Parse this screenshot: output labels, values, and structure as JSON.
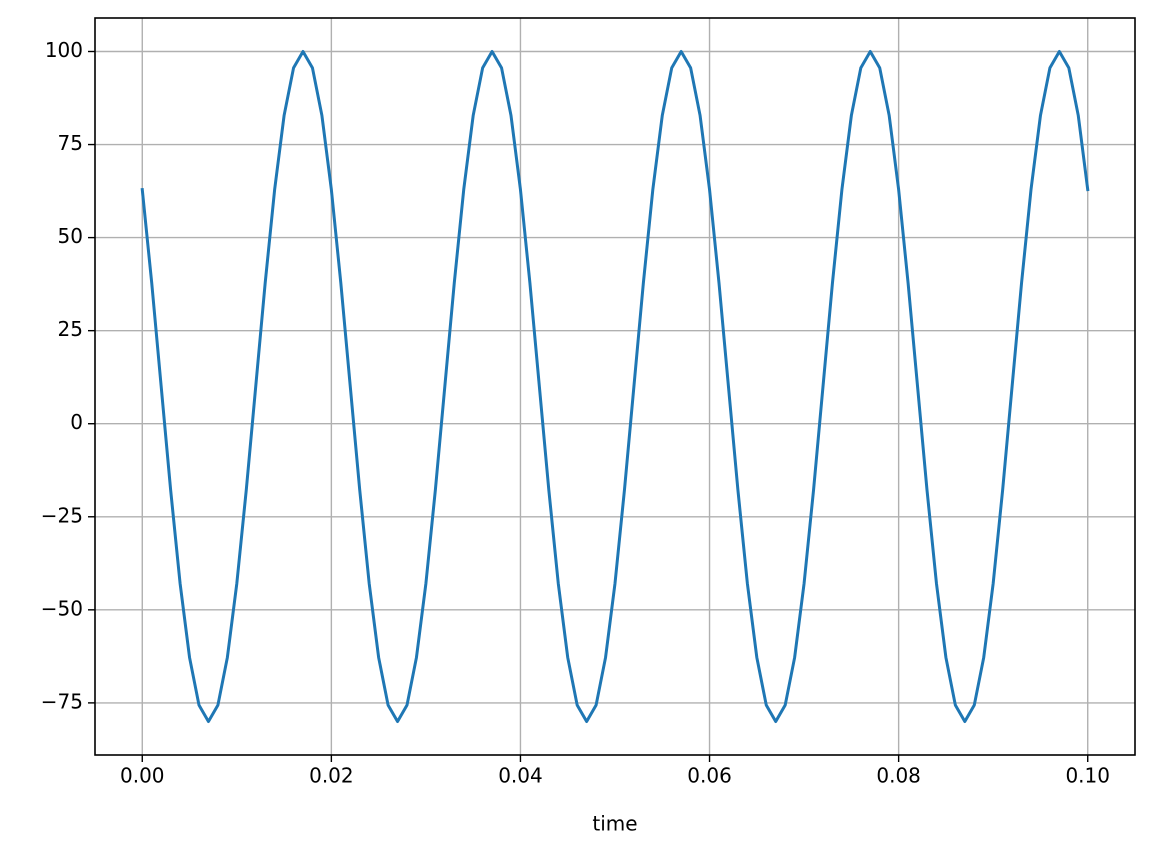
{
  "chart_data": {
    "type": "line",
    "xlabel": "time",
    "color": "#1f77b4",
    "grid": true,
    "xlim": [
      -0.005,
      0.105
    ],
    "ylim": [
      -89,
      109
    ],
    "xticks": [
      {
        "value": 0,
        "label": "0.00"
      },
      {
        "value": 0.02,
        "label": "0.02"
      },
      {
        "value": 0.04,
        "label": "0.04"
      },
      {
        "value": 0.06,
        "label": "0.06"
      },
      {
        "value": 0.08,
        "label": "0.08"
      },
      {
        "value": 0.1,
        "label": "0.10"
      }
    ],
    "yticks": [
      {
        "value": -75,
        "label": "−75"
      },
      {
        "value": -50,
        "label": "−50"
      },
      {
        "value": -25,
        "label": "−25"
      },
      0,
      25,
      50,
      75,
      100
    ],
    "x": [
      0,
      0.001,
      0.002,
      0.003,
      0.004,
      0.005,
      0.006,
      0.007,
      0.008,
      0.009,
      0.01,
      0.011,
      0.012,
      0.013,
      0.014,
      0.015,
      0.016,
      0.017,
      0.018,
      0.019,
      0.02,
      0.021,
      0.022,
      0.023,
      0.024,
      0.025,
      0.026,
      0.027,
      0.028,
      0.029,
      0.03,
      0.031,
      0.032,
      0.033,
      0.034,
      0.035,
      0.036,
      0.037,
      0.038,
      0.039,
      0.04,
      0.041,
      0.042,
      0.043,
      0.044,
      0.045,
      0.046,
      0.047,
      0.048,
      0.049,
      0.05,
      0.051,
      0.052,
      0.053,
      0.054,
      0.055,
      0.056,
      0.057,
      0.058,
      0.059,
      0.06,
      0.061,
      0.062,
      0.063,
      0.064,
      0.065,
      0.066,
      0.067,
      0.068,
      0.069,
      0.07,
      0.071,
      0.072,
      0.073,
      0.074,
      0.075,
      0.076,
      0.077,
      0.078,
      0.079,
      0.08,
      0.081,
      0.082,
      0.083,
      0.084,
      0.085,
      0.086,
      0.087,
      0.088,
      0.089,
      0.09,
      0.091,
      0.092,
      0.093,
      0.094,
      0.095,
      0.096,
      0.097,
      0.098,
      0.099,
      0.1
    ],
    "values": [
      62.9,
      37.8,
      10,
      -17.8,
      -42.9,
      -62.8,
      -75.6,
      -80,
      -75.6,
      -62.8,
      -42.9,
      -17.8,
      10,
      37.8,
      62.9,
      82.8,
      95.6,
      100,
      95.6,
      82.8,
      62.9,
      37.8,
      10,
      -17.8,
      -42.9,
      -62.8,
      -75.6,
      -80,
      -75.6,
      -62.8,
      -42.9,
      -17.8,
      10,
      37.8,
      62.9,
      82.8,
      95.6,
      100,
      95.6,
      82.8,
      62.9,
      37.8,
      10,
      -17.8,
      -42.9,
      -62.8,
      -75.6,
      -80,
      -75.6,
      -62.8,
      -42.9,
      -17.8,
      10,
      37.8,
      62.9,
      82.8,
      95.6,
      100,
      95.6,
      82.8,
      62.9,
      37.8,
      10,
      -17.8,
      -42.9,
      -62.8,
      -75.6,
      -80,
      -75.6,
      -62.8,
      -42.9,
      -17.8,
      10,
      37.8,
      62.9,
      82.8,
      95.6,
      100,
      95.6,
      82.8,
      62.9,
      37.8,
      10,
      -17.8,
      -42.9,
      -62.8,
      -75.6,
      -80,
      -75.6,
      -62.8,
      -42.9,
      -17.8,
      10,
      37.8,
      62.9,
      82.8,
      95.6,
      100,
      95.6,
      82.8,
      62.9
    ]
  }
}
